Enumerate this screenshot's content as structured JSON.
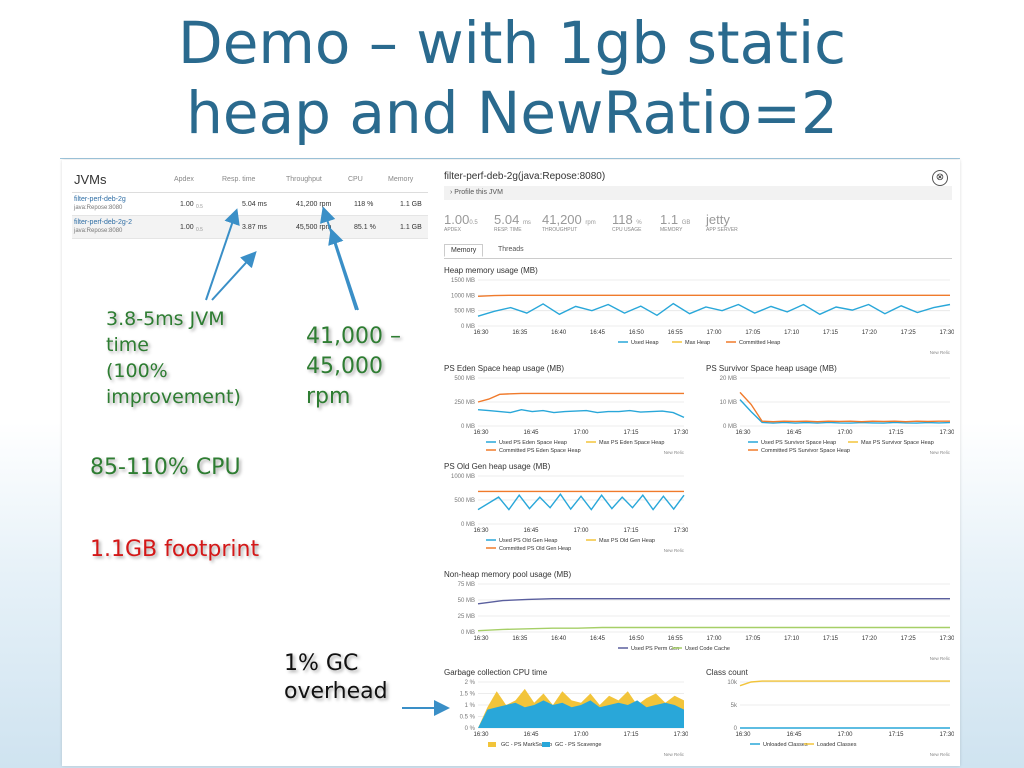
{
  "slide": {
    "title_line1": "Demo – with 1gb static",
    "title_line2": "heap and NewRatio=2"
  },
  "jvm_table": {
    "title": "JVMs",
    "columns": [
      "Apdex",
      "Resp. time",
      "Throughput",
      "CPU",
      "Memory"
    ],
    "rows": [
      {
        "name": "filter-perf-deb-2g",
        "sub": "java:Repose:8080",
        "apdex": "1.00",
        "apdex_t": "0.5",
        "resp": "5.04 ms",
        "throughput": "41,200 rpm",
        "cpu": "118 %",
        "memory": "1.1 GB"
      },
      {
        "name": "filter-perf-deb-2g-2",
        "sub": "java:Repose:8080",
        "apdex": "1.00",
        "apdex_t": "0.5",
        "resp": "3.87 ms",
        "throughput": "45,500 rpm",
        "cpu": "85.1 %",
        "memory": "1.1 GB"
      }
    ]
  },
  "detail": {
    "title": "filter-perf-deb-2g(java:Repose:8080)",
    "close": "⊗",
    "profile_link": "›  Profile this JVM",
    "metrics": [
      {
        "value": "1.00",
        "suffix": "0.5",
        "label": "APDEX"
      },
      {
        "value": "5.04",
        "suffix": "ms",
        "label": "RESP. TIME"
      },
      {
        "value": "41,200",
        "suffix": "rpm",
        "label": "THROUGHPUT"
      },
      {
        "value": "118",
        "suffix": "%",
        "label": "CPU USAGE"
      },
      {
        "value": "1.1",
        "suffix": "GB",
        "label": "MEMORY"
      },
      {
        "value": "jetty",
        "suffix": "",
        "label": "APP SERVER"
      }
    ],
    "tabs": [
      "Memory",
      "Threads"
    ],
    "new_relic": "New Relic"
  },
  "colors": {
    "blue": "#29a7d9",
    "orange": "#f07a2b",
    "yellow": "#f2c43a",
    "purple": "#5a5f9e",
    "green": "#a6cf67",
    "title": "#2a6a8e"
  },
  "chart_data": [
    {
      "id": "heap",
      "type": "line",
      "title": "Heap memory usage (MB)",
      "y_ticks": [
        "1500 MB",
        "1000 MB",
        "500 MB",
        "0 MB"
      ],
      "ylim": [
        0,
        1500
      ],
      "x_ticks": [
        "16:30",
        "16:35",
        "16:40",
        "16:45",
        "16:50",
        "16:55",
        "17:00",
        "17:05",
        "17:10",
        "17:15",
        "17:20",
        "17:25",
        "17:30"
      ],
      "legend": [
        "Used Heap",
        "Max Heap",
        "Committed Heap"
      ],
      "series": [
        {
          "name": "Used Heap",
          "color": "#29a7d9",
          "values": [
            320,
            480,
            600,
            420,
            720,
            380,
            640,
            500,
            700,
            420,
            650,
            350,
            730,
            400,
            620,
            500,
            700,
            420,
            640,
            460,
            700,
            380,
            620,
            520,
            700,
            400,
            660,
            440,
            600,
            700
          ]
        },
        {
          "name": "Committed Heap",
          "color": "#f07a2b",
          "values": [
            970,
            990,
            1000,
            1000,
            1000,
            1000,
            1000,
            1000,
            1000,
            1000,
            1000,
            1000,
            1000,
            1000,
            1000,
            1000,
            1000,
            1000,
            1000,
            1000,
            1000,
            1000,
            1000,
            1000,
            1000,
            1000,
            1000,
            1000,
            1000,
            1000
          ]
        }
      ]
    },
    {
      "id": "eden",
      "type": "line",
      "title": "PS Eden Space heap usage (MB)",
      "y_ticks": [
        "500 MB",
        "250 MB",
        "0 MB"
      ],
      "ylim": [
        0,
        500
      ],
      "x_ticks": [
        "16:30",
        "16:45",
        "17:00",
        "17:15",
        "17:30"
      ],
      "legend": [
        "Used PS Eden Space Heap",
        "Max PS Eden Space Heap",
        "Committed PS Eden Space Heap"
      ],
      "series": [
        {
          "name": "Used PS Eden Space Heap",
          "color": "#29a7d9",
          "values": [
            170,
            160,
            150,
            140,
            170,
            150,
            160,
            140,
            150,
            155,
            160,
            140,
            150,
            150,
            160,
            145,
            150,
            155,
            140,
            90
          ]
        },
        {
          "name": "Committed PS Eden Space Heap",
          "color": "#f07a2b",
          "values": [
            250,
            280,
            330,
            335,
            340,
            340,
            340,
            340,
            340,
            340,
            340,
            340,
            340,
            340,
            340,
            340,
            340,
            340,
            340,
            340
          ]
        }
      ]
    },
    {
      "id": "survivor",
      "type": "line",
      "title": "PS Survivor Space heap usage (MB)",
      "y_ticks": [
        "20 MB",
        "10 MB",
        "0 MB"
      ],
      "ylim": [
        0,
        20
      ],
      "x_ticks": [
        "16:30",
        "16:45",
        "17:00",
        "17:15",
        "17:30"
      ],
      "legend": [
        "Used PS Survivor Space Heap",
        "Max PS Survivor Space Heap",
        "Committed PS Survivor Space Heap"
      ],
      "series": [
        {
          "name": "Used PS Survivor Space Heap",
          "color": "#29a7d9",
          "values": [
            11,
            6,
            1.5,
            1.2,
            1.5,
            1.2,
            1.4,
            1.2,
            1.5,
            1.3,
            1.2,
            1.4,
            1.3,
            1.2,
            1.5,
            1.3,
            1.2,
            1.4,
            1.3,
            1.4
          ]
        },
        {
          "name": "Committed PS Survivor Space Heap",
          "color": "#f07a2b",
          "values": [
            14,
            9,
            2,
            1.8,
            2,
            1.9,
            2,
            1.8,
            2,
            1.9,
            2,
            1.8,
            2,
            1.9,
            2,
            1.8,
            2,
            1.9,
            2,
            2
          ]
        }
      ]
    },
    {
      "id": "oldgen",
      "type": "line",
      "title": "PS Old Gen heap usage (MB)",
      "y_ticks": [
        "1000 MB",
        "500 MB",
        "0 MB"
      ],
      "ylim": [
        0,
        1000
      ],
      "x_ticks": [
        "16:30",
        "16:45",
        "17:00",
        "17:15",
        "17:30"
      ],
      "legend": [
        "Used PS Old Gen Heap",
        "Max PS Old Gen Heap",
        "Committed PS Old Gen Heap"
      ],
      "series": [
        {
          "name": "Used PS Old Gen Heap",
          "color": "#29a7d9",
          "values": [
            300,
            430,
            560,
            300,
            600,
            320,
            560,
            340,
            620,
            310,
            580,
            300,
            600,
            320,
            560,
            340,
            600,
            300,
            580,
            310,
            600
          ]
        },
        {
          "name": "Committed PS Old Gen Heap",
          "color": "#f07a2b",
          "values": [
            680,
            680,
            680,
            680,
            680,
            680,
            680,
            680,
            680,
            680,
            680,
            680,
            680,
            680,
            680,
            680,
            680,
            680,
            680,
            680,
            680
          ]
        }
      ]
    },
    {
      "id": "nonheap",
      "type": "line",
      "title": "Non-heap memory pool usage (MB)",
      "y_ticks": [
        "75 MB",
        "50 MB",
        "25 MB",
        "0 MB"
      ],
      "ylim": [
        0,
        75
      ],
      "x_ticks": [
        "16:30",
        "16:35",
        "16:40",
        "16:45",
        "16:50",
        "16:55",
        "17:00",
        "17:05",
        "17:10",
        "17:15",
        "17:20",
        "17:25",
        "17:30"
      ],
      "legend": [
        "Used PS Perm Gen",
        "Used Code Cache"
      ],
      "series": [
        {
          "name": "Used PS Perm Gen",
          "color": "#5a5f9e",
          "values": [
            44,
            49,
            51,
            52,
            52,
            52,
            52,
            52,
            52,
            52,
            52,
            52,
            52,
            52,
            52,
            52,
            52,
            52,
            52,
            52
          ]
        },
        {
          "name": "Used Code Cache",
          "color": "#a6cf67",
          "values": [
            2,
            4,
            5,
            6,
            6,
            7,
            7,
            7,
            7,
            7,
            7,
            7,
            7,
            7,
            7,
            7,
            7,
            7,
            7,
            7
          ]
        }
      ]
    },
    {
      "id": "gc",
      "type": "area",
      "title": "Garbage collection CPU time",
      "y_ticks": [
        "2 %",
        "1.5 %",
        "1 %",
        "0.5 %",
        "0 %"
      ],
      "ylim": [
        0,
        2
      ],
      "x_ticks": [
        "16:30",
        "16:45",
        "17:00",
        "17:15",
        "17:30"
      ],
      "legend": [
        "GC - PS MarkSweep",
        "GC - PS Scavenge"
      ],
      "series": [
        {
          "name": "GC - PS MarkSweep",
          "color": "#f2c43a",
          "values": [
            0,
            0.9,
            1.6,
            1.0,
            1.2,
            1.7,
            1.1,
            1.5,
            1.0,
            1.6,
            1.2,
            1.1,
            1.5,
            1.0,
            1.4,
            1.2,
            1.6,
            1.0,
            1.3,
            1.5,
            1.1,
            1.4,
            1.2
          ]
        },
        {
          "name": "GC - PS Scavenge",
          "color": "#29a7d9",
          "values": [
            0,
            0.8,
            0.9,
            1.0,
            1.1,
            0.9,
            1.0,
            1.2,
            1.0,
            1.1,
            0.9,
            1.0,
            1.2,
            0.9,
            1.0,
            1.1,
            1.0,
            1.2,
            0.9,
            1.0,
            1.1,
            1.0,
            0.8
          ]
        }
      ]
    },
    {
      "id": "classes",
      "type": "line",
      "title": "Class count",
      "y_ticks": [
        "10k",
        "5k",
        "0"
      ],
      "ylim": [
        0,
        10000
      ],
      "x_ticks": [
        "16:30",
        "16:45",
        "17:00",
        "17:15",
        "17:30"
      ],
      "legend": [
        "Unloaded Classes",
        "Loaded Classes"
      ],
      "series": [
        {
          "name": "Loaded Classes",
          "color": "#f2c43a",
          "values": [
            9200,
            10000,
            10200,
            10200,
            10200,
            10200,
            10200,
            10200,
            10200,
            10200,
            10200,
            10200,
            10200,
            10200,
            10200,
            10200,
            10200,
            10200,
            10200,
            10200
          ]
        },
        {
          "name": "Unloaded Classes",
          "color": "#29a7d9",
          "values": [
            0,
            0,
            0,
            0,
            0,
            0,
            0,
            0,
            0,
            0,
            0,
            0,
            0,
            0,
            0,
            0,
            0,
            0,
            0,
            0
          ]
        }
      ]
    }
  ],
  "annotations": {
    "jvm_time": [
      "3.8-5ms JVM",
      "time",
      "(100%",
      "improvement)"
    ],
    "rpm": [
      "41,000 –",
      "45,000",
      "rpm"
    ],
    "cpu": "85-110% CPU",
    "footprint": "1.1GB footprint",
    "gc": [
      "1% GC",
      "overhead"
    ]
  }
}
